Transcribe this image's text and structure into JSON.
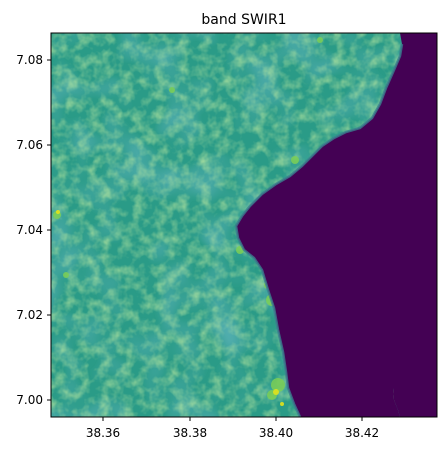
{
  "figure": {
    "title": "band SWIR1",
    "x_ticks": [
      "38.36",
      "38.38",
      "38.40",
      "38.42"
    ],
    "y_ticks": [
      "7.08",
      "7.06",
      "7.04",
      "7.02",
      "7.00"
    ]
  },
  "image_extent": {
    "x_range": [
      38.345,
      38.436
    ],
    "y_range": [
      6.996,
      7.087
    ]
  },
  "colors": {
    "water": "#440154",
    "land_base": "#2a9b87",
    "land_bright": "#73c85a",
    "land_dark": "#22798a",
    "highlight": "#e2e31b"
  }
}
